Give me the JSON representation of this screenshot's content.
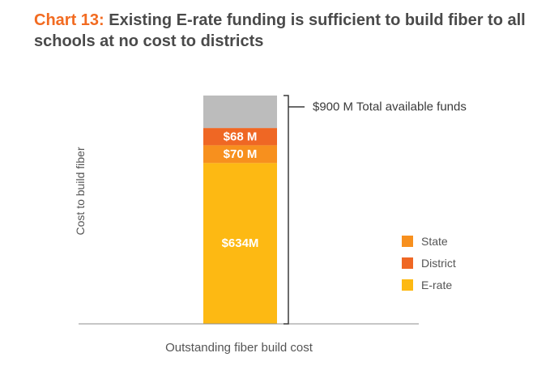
{
  "title": {
    "prefix": "Chart 13:",
    "text": "Existing E-rate funding is sufficient to build fiber to all schools at no cost to districts"
  },
  "colors": {
    "state": "#f7901e",
    "district": "#ef6724",
    "erate": "#fdb913",
    "remaining": "#bcbcbc",
    "axis": "#8c8c8c",
    "title_accent": "#f26b21",
    "text": "#4a4a4a"
  },
  "chart_data": {
    "type": "bar",
    "stacked": true,
    "categories": [
      "Outstanding fiber build cost"
    ],
    "series": [
      {
        "name": "E-rate",
        "values": [
          634
        ],
        "label": "$634M",
        "color": "#fdb913"
      },
      {
        "name": "State",
        "values": [
          70
        ],
        "label": "$70 M",
        "color": "#f7901e"
      },
      {
        "name": "District",
        "values": [
          68
        ],
        "label": "$68 M",
        "color": "#ef6724"
      },
      {
        "values": [
          128
        ],
        "label": "",
        "color": "#bcbcbc"
      }
    ],
    "total": {
      "value": 900,
      "label": "$900 M Total available funds"
    },
    "xlabel": "Outstanding fiber build cost",
    "ylabel": "Cost to build fiber",
    "ylim": [
      0,
      900
    ],
    "grid": false,
    "legend": {
      "placement": "right",
      "items": [
        {
          "name": "State",
          "color": "#f7901e"
        },
        {
          "name": "District",
          "color": "#ef6724"
        },
        {
          "name": "E-rate",
          "color": "#fdb913"
        }
      ]
    }
  }
}
